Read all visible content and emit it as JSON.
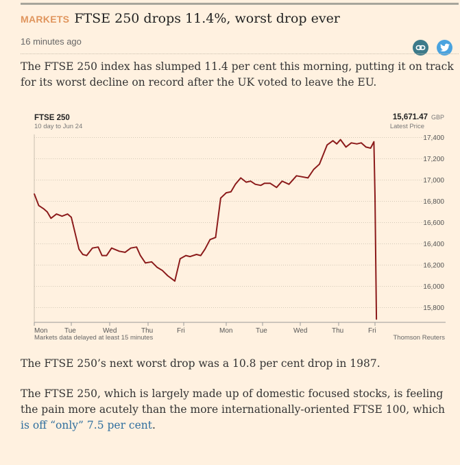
{
  "article": {
    "section_tag": "MARKETS",
    "headline": "FTSE 250 drops 11.4%, worst drop ever",
    "timestamp": "16 minutes ago",
    "paragraph_1": "The FTSE 250 index has slumped 11.4 per cent this morning, putting it on track for its worst decline on record after the UK voted to leave the EU.",
    "paragraph_2": "The FTSE 250’s next worst drop was a 10.8 per cent drop in 1987.",
    "paragraph_3_text": "The FTSE 250, which is largely made up of domestic focused stocks, is feeling the pain more acutely than the more internationally-oriented FTSE 100, which ",
    "paragraph_3_link": "is off “only” 7.5 per cent",
    "paragraph_3_end": "."
  },
  "share": {
    "link_icon": "link-icon",
    "twitter_icon": "twitter-icon",
    "link_color": "#3c7a8a",
    "twitter_color": "#4aa3df"
  },
  "chart_data": {
    "type": "line",
    "title": "FTSE 250",
    "subtitle": "10 day to Jun 24",
    "latest_value": "15,671.47",
    "latest_currency": "GBP",
    "latest_label": "Latest Price",
    "footer_left": "Markets data delayed at least 15 minutes",
    "footer_right": "Thomson Reuters",
    "ylim": [
      15700,
      17450
    ],
    "yticks": [
      15800,
      16000,
      16200,
      16400,
      16600,
      16800,
      17000,
      17200,
      17400
    ],
    "ytick_labels": [
      "15,800",
      "16,000",
      "16,200",
      "16,400",
      "16,600",
      "16,800",
      "17,000",
      "17,200",
      "17,400"
    ],
    "xlim": [
      0,
      10
    ],
    "xticks": [
      0,
      1,
      2,
      3,
      4,
      5,
      6,
      7,
      8,
      9
    ],
    "xtick_labels": [
      "Mon",
      "Tue",
      "Wed",
      "Thu",
      "Fri",
      "Mon",
      "Tue",
      "Wed",
      "Thu",
      "Fri"
    ],
    "line_color": "#8b1a1a",
    "x": [
      0.0,
      0.12,
      0.25,
      0.35,
      0.45,
      0.6,
      0.75,
      0.9,
      1.0,
      1.2,
      1.3,
      1.4,
      1.55,
      1.7,
      1.8,
      1.92,
      2.05,
      2.25,
      2.4,
      2.55,
      2.7,
      2.8,
      2.93,
      3.1,
      3.25,
      3.4,
      3.55,
      3.75,
      3.9,
      4.05,
      4.15,
      4.3,
      4.4,
      4.5,
      4.62,
      4.75,
      4.87,
      5.0,
      5.13,
      5.25,
      5.4,
      5.55,
      5.67,
      5.8,
      5.95,
      6.05,
      6.2,
      6.37,
      6.52,
      6.7,
      6.9,
      7.05,
      7.2,
      7.35,
      7.5,
      7.7,
      7.85,
      7.95,
      8.05,
      8.2,
      8.35,
      8.5,
      8.62,
      8.75,
      8.88,
      8.97,
      9.0,
      9.04
    ],
    "values": [
      16870,
      16760,
      16730,
      16700,
      16640,
      16680,
      16660,
      16680,
      16650,
      16350,
      16300,
      16290,
      16360,
      16370,
      16290,
      16290,
      16360,
      16330,
      16320,
      16360,
      16370,
      16290,
      16220,
      16230,
      16180,
      16150,
      16100,
      16050,
      16260,
      16290,
      16280,
      16300,
      16290,
      16350,
      16440,
      16460,
      16830,
      16880,
      16890,
      16960,
      17020,
      16980,
      16990,
      16960,
      16950,
      16970,
      16970,
      16930,
      16990,
      16960,
      17040,
      17030,
      17020,
      17100,
      17150,
      17330,
      17370,
      17340,
      17380,
      17310,
      17350,
      17340,
      17350,
      17310,
      17300,
      17360,
      16850,
      15690
    ]
  }
}
